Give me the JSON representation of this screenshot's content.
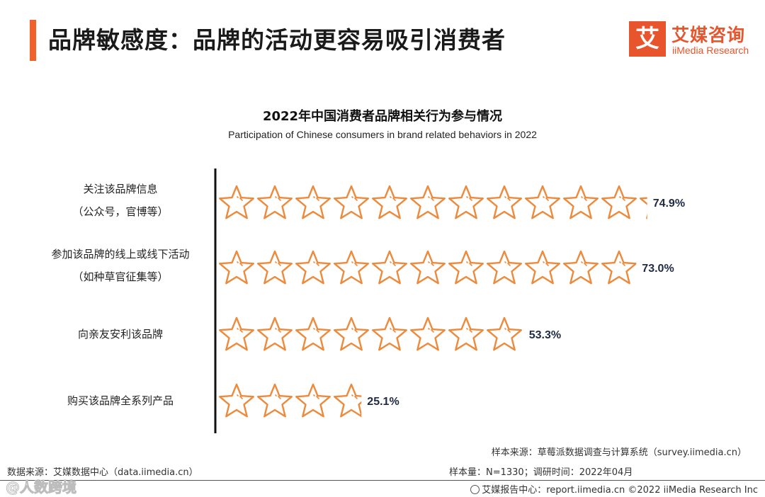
{
  "header": {
    "title": "品牌敏感度：品牌的活动更容易吸引消费者",
    "logo_mark": "艾",
    "logo_cn": "艾媒咨询",
    "logo_en": "iiMedia Research"
  },
  "chart_data": {
    "type": "bar",
    "title": "2022年中国消费者品牌相关行为参与情况",
    "subtitle": "Participation of Chinese consumers in brand related behaviors in 2022",
    "categories": [
      [
        "关注该品牌信息",
        "（公众号，官博等）"
      ],
      [
        "参加该品牌的线上或线下活动",
        "（如种草官征集等）"
      ],
      [
        "向亲友安利该品牌"
      ],
      [
        "购买该品牌全系列产品"
      ]
    ],
    "values": [
      74.9,
      73.0,
      53.3,
      25.1
    ],
    "value_labels": [
      "74.9%",
      "73.0%",
      "53.3%",
      "25.1%"
    ],
    "unit": "%",
    "xlim": [
      0,
      100
    ],
    "orientation": "horizontal",
    "mark": "star-pictograph",
    "grid": false,
    "legend": "none"
  },
  "colors": {
    "accent": "#f0622c",
    "star": "#ed8a3c",
    "value_text": "#1f2a44"
  },
  "footer": {
    "source_left": "数据来源：艾媒数据中心（data.iimedia.cn）",
    "sample_source": "样本来源：草莓派数据调查与计算系统（survey.iimedia.cn）",
    "sample_size": "样本量：N=1330；调研时间：2022年04月",
    "report_center": "艾媒报告中心：report.iimedia.cn  ©2022  iiMedia Research  Inc",
    "watermark": "@人数跨境"
  }
}
